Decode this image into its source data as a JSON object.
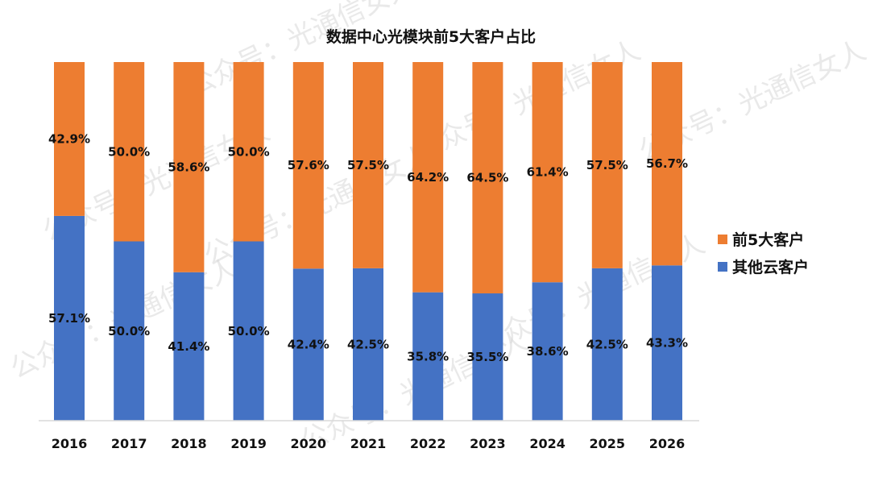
{
  "chart_data": {
    "type": "bar",
    "stacked": true,
    "title": "数据中心光模块前5大客户占比",
    "xlabel": "",
    "ylabel": "",
    "ylim": [
      0,
      100
    ],
    "grid": false,
    "legend_position": "right",
    "categories": [
      "2016",
      "2017",
      "2018",
      "2019",
      "2020",
      "2021",
      "2022",
      "2023",
      "2024",
      "2025",
      "2026"
    ],
    "series": [
      {
        "name": "其他云客户",
        "color": "#4472C4",
        "values": [
          57.1,
          50.0,
          41.4,
          50.0,
          42.4,
          42.5,
          35.8,
          35.5,
          38.6,
          42.5,
          43.3
        ],
        "labels": [
          "57.1%",
          "50.0%",
          "41.4%",
          "50.0%",
          "42.4%",
          "42.5%",
          "35.8%",
          "35.5%",
          "38.6%",
          "42.5%",
          "43.3%"
        ]
      },
      {
        "name": "前5大客户",
        "color": "#ED7D31",
        "values": [
          42.9,
          50.0,
          58.6,
          50.0,
          57.6,
          57.5,
          64.2,
          64.5,
          61.4,
          57.5,
          56.7
        ],
        "labels": [
          "42.9%",
          "50.0%",
          "58.6%",
          "50.0%",
          "57.6%",
          "57.5%",
          "64.2%",
          "64.5%",
          "61.4%",
          "57.5%",
          "56.7%"
        ]
      }
    ],
    "legend": [
      {
        "name": "前5大客户",
        "color": "#ED7D31"
      },
      {
        "name": "其他云客户",
        "color": "#4472C4"
      }
    ]
  },
  "watermark": "公众号：光通信女人"
}
